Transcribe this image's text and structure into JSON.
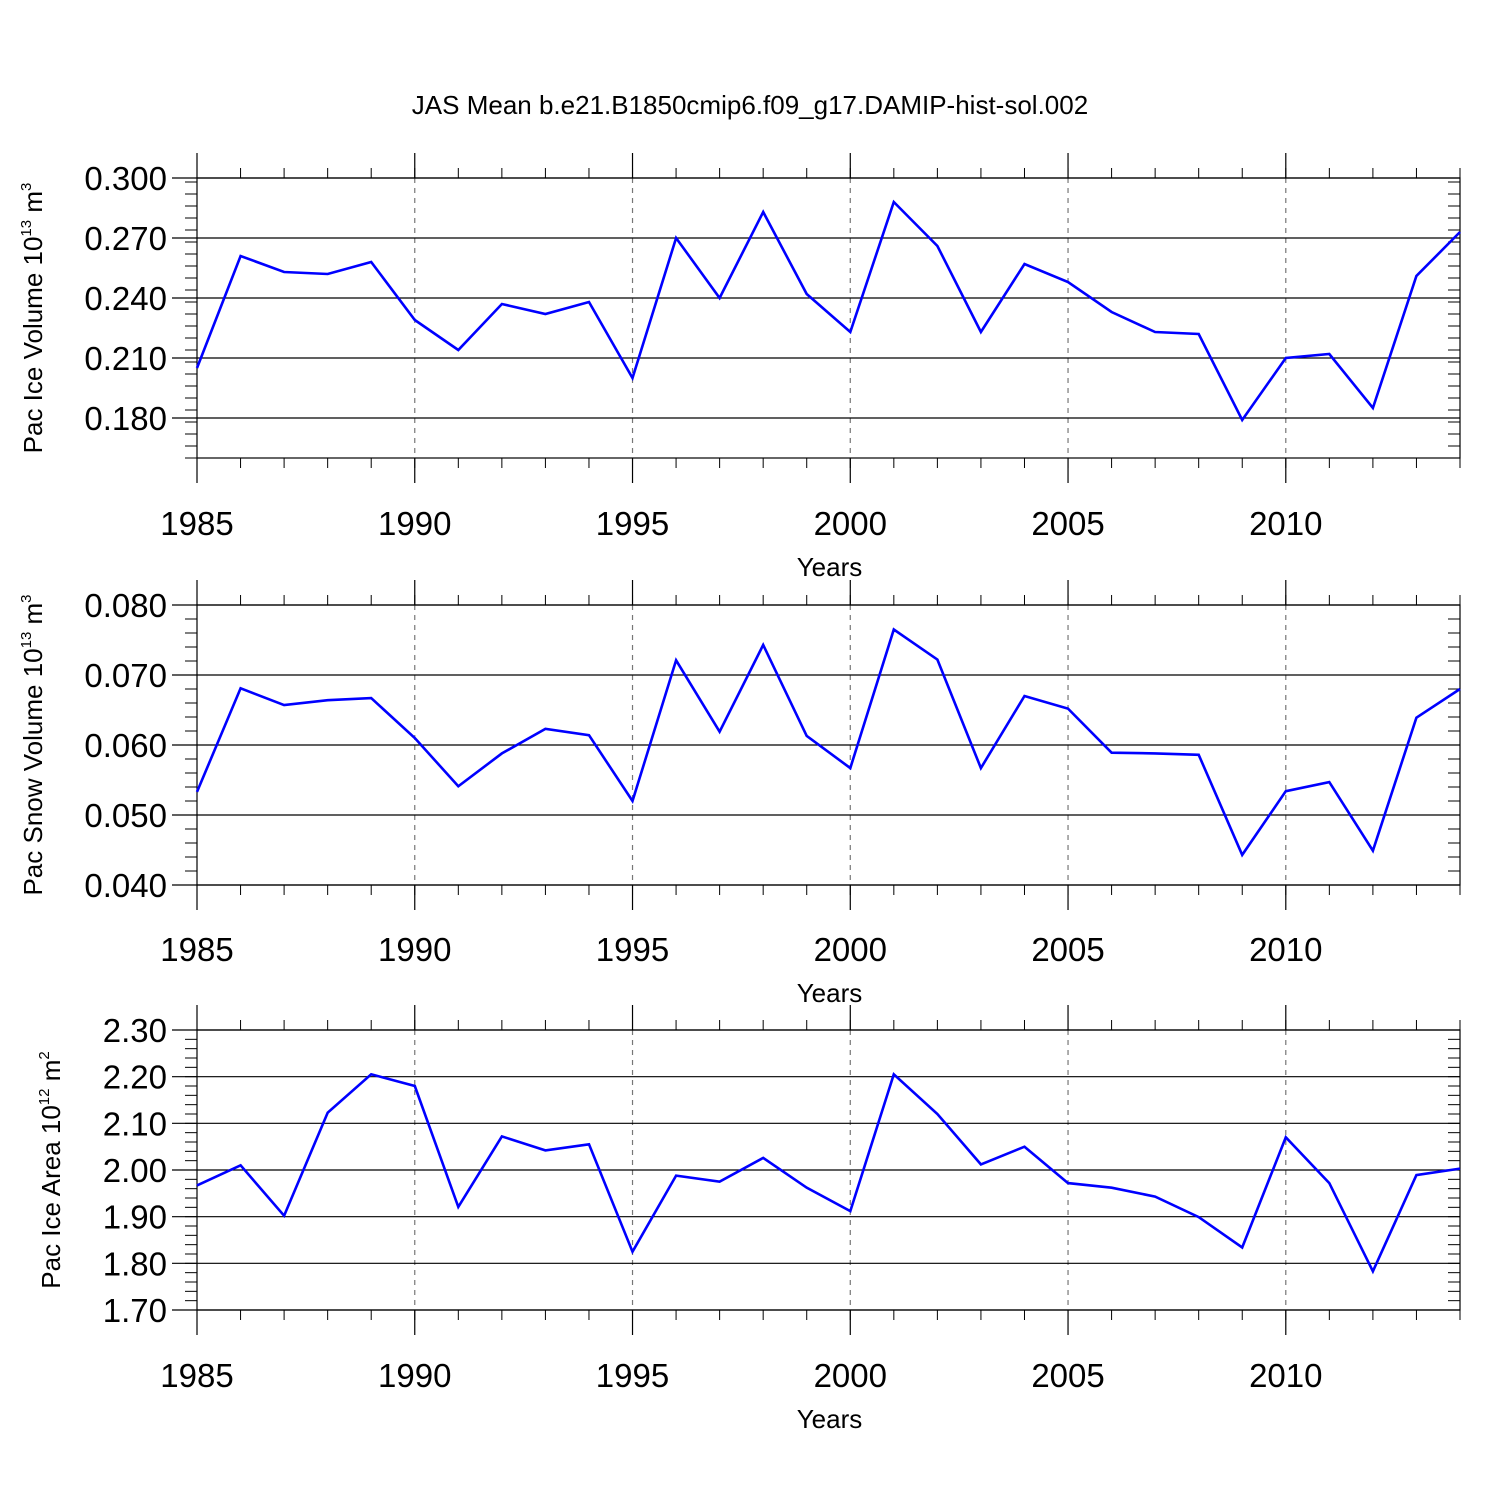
{
  "title": "JAS Mean b.e21.B1850cmip6.f09_g17.DAMIP-hist-sol.002",
  "colors": {
    "line": "#0000ff",
    "axis": "#000000",
    "grid": "#777777"
  },
  "chart_data": [
    {
      "type": "line",
      "ylabel": "Pac Ice Volume 10",
      "ylabel_exponent": "13",
      "ylabel_unit": " m",
      "ylabel_unit_exponent": "3",
      "xlabel": "Years",
      "xlim": [
        1985,
        2014
      ],
      "ylim": [
        0.16,
        0.3
      ],
      "x_ticks": [
        1985,
        1990,
        1995,
        2000,
        2005,
        2010
      ],
      "x_tick_labels": [
        "1985",
        "1990",
        "1995",
        "2000",
        "2005",
        "2010"
      ],
      "y_ticks": [
        0.18,
        0.21,
        0.24,
        0.27,
        0.3
      ],
      "y_tick_labels": [
        "0.180",
        "0.210",
        "0.240",
        "0.270",
        "0.300"
      ],
      "y_minor_step": 0.006,
      "grid": "vertical dashed at major x ticks",
      "x": [
        1985,
        1986,
        1987,
        1988,
        1989,
        1990,
        1991,
        1992,
        1993,
        1994,
        1995,
        1996,
        1997,
        1998,
        1999,
        2000,
        2001,
        2002,
        2003,
        2004,
        2005,
        2006,
        2007,
        2008,
        2009,
        2010,
        2011,
        2012,
        2013,
        2014
      ],
      "values": [
        0.205,
        0.261,
        0.253,
        0.252,
        0.258,
        0.229,
        0.214,
        0.237,
        0.232,
        0.238,
        0.2,
        0.27,
        0.24,
        0.283,
        0.242,
        0.223,
        0.288,
        0.266,
        0.223,
        0.257,
        0.248,
        0.233,
        0.223,
        0.222,
        0.179,
        0.21,
        0.212,
        0.185,
        0.251,
        0.273
      ]
    },
    {
      "type": "line",
      "ylabel": "Pac Snow Volume 10",
      "ylabel_exponent": "13",
      "ylabel_unit": " m",
      "ylabel_unit_exponent": "3",
      "xlabel": "Years",
      "xlim": [
        1985,
        2014
      ],
      "ylim": [
        0.04,
        0.08
      ],
      "x_ticks": [
        1985,
        1990,
        1995,
        2000,
        2005,
        2010
      ],
      "x_tick_labels": [
        "1985",
        "1990",
        "1995",
        "2000",
        "2005",
        "2010"
      ],
      "y_ticks": [
        0.04,
        0.05,
        0.06,
        0.07,
        0.08
      ],
      "y_tick_labels": [
        "0.040",
        "0.050",
        "0.060",
        "0.070",
        "0.080"
      ],
      "y_minor_step": 0.002,
      "grid": "vertical dashed at major x ticks",
      "x": [
        1985,
        1986,
        1987,
        1988,
        1989,
        1990,
        1991,
        1992,
        1993,
        1994,
        1995,
        1996,
        1997,
        1998,
        1999,
        2000,
        2001,
        2002,
        2003,
        2004,
        2005,
        2006,
        2007,
        2008,
        2009,
        2010,
        2011,
        2012,
        2013,
        2014
      ],
      "values": [
        0.0533,
        0.0681,
        0.0657,
        0.0664,
        0.0667,
        0.061,
        0.0541,
        0.0588,
        0.0623,
        0.0614,
        0.052,
        0.0721,
        0.0619,
        0.0743,
        0.0613,
        0.0567,
        0.0765,
        0.0722,
        0.0567,
        0.067,
        0.0652,
        0.0589,
        0.0588,
        0.0586,
        0.0443,
        0.0534,
        0.0547,
        0.0449,
        0.0639,
        0.068
      ]
    },
    {
      "type": "line",
      "ylabel": "Pac Ice Area 10",
      "ylabel_exponent": "12",
      "ylabel_unit": " m",
      "ylabel_unit_exponent": "2",
      "xlabel": "Years",
      "xlim": [
        1985,
        2014
      ],
      "ylim": [
        1.7,
        2.3
      ],
      "x_ticks": [
        1985,
        1990,
        1995,
        2000,
        2005,
        2010
      ],
      "x_tick_labels": [
        "1985",
        "1990",
        "1995",
        "2000",
        "2005",
        "2010"
      ],
      "y_ticks": [
        1.7,
        1.8,
        1.9,
        2.0,
        2.1,
        2.2,
        2.3
      ],
      "y_tick_labels": [
        "1.70",
        "1.80",
        "1.90",
        "2.00",
        "2.10",
        "2.20",
        "2.30"
      ],
      "y_minor_step": 0.02,
      "grid": "vertical dashed at major x ticks",
      "x": [
        1985,
        1986,
        1987,
        1988,
        1989,
        1990,
        1991,
        1992,
        1993,
        1994,
        1995,
        1996,
        1997,
        1998,
        1999,
        2000,
        2001,
        2002,
        2003,
        2004,
        2005,
        2006,
        2007,
        2008,
        2009,
        2010,
        2011,
        2012,
        2013,
        2014
      ],
      "values": [
        1.967,
        2.01,
        1.902,
        2.123,
        2.205,
        2.18,
        1.921,
        2.072,
        2.042,
        2.055,
        1.825,
        1.988,
        1.975,
        2.026,
        1.962,
        1.912,
        2.205,
        2.12,
        2.012,
        2.05,
        1.972,
        1.962,
        1.943,
        1.899,
        1.834,
        2.07,
        1.972,
        1.783,
        1.989,
        2.003
      ]
    }
  ]
}
